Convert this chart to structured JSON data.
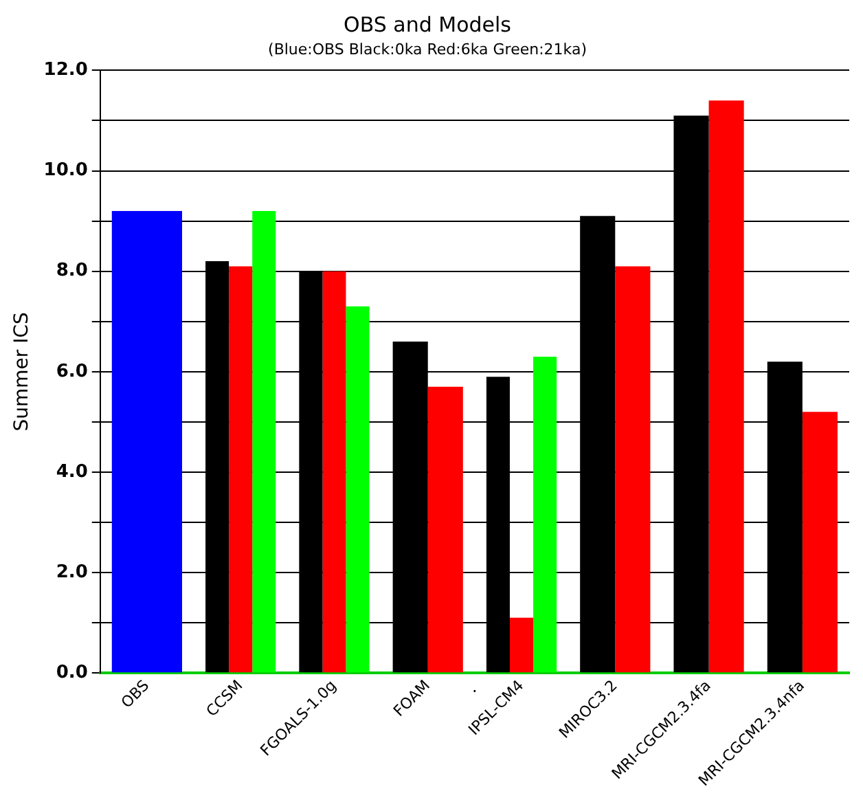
{
  "chart_data": {
    "type": "bar",
    "title": "OBS and Models",
    "subtitle": "(Blue:OBS Black:0ka Red:6ka Green:21ka)",
    "ylabel": "Summer ICS",
    "categories": [
      "OBS",
      "CCSM",
      "FGOALS-1.0g",
      "FOAM",
      "IPSL-CM4",
      "MIROC3.2",
      "MRI-CGCM2.3.4fa",
      "MRI-CGCM2.3.4nfa"
    ],
    "series": [
      {
        "color": "#0000ff",
        "values": [
          9.2,
          null,
          null,
          null,
          null,
          null,
          null,
          null
        ]
      },
      {
        "color": "#000000",
        "values": [
          null,
          8.2,
          8.0,
          6.6,
          5.9,
          9.1,
          11.1,
          6.2
        ]
      },
      {
        "color": "#ff0000",
        "values": [
          null,
          8.1,
          8.0,
          5.7,
          1.1,
          8.1,
          11.4,
          5.2
        ]
      },
      {
        "color": "#00ff00",
        "values": [
          null,
          9.2,
          7.3,
          null,
          6.3,
          null,
          null,
          null
        ]
      }
    ],
    "ylim": [
      0,
      12
    ],
    "yticks": [
      {
        "value": 0,
        "label": "0.0"
      },
      {
        "value": 1,
        "label": null
      },
      {
        "value": 2,
        "label": "2.0"
      },
      {
        "value": 3,
        "label": null
      },
      {
        "value": 4,
        "label": "4.0"
      },
      {
        "value": 5,
        "label": null
      },
      {
        "value": 6,
        "label": "6.0"
      },
      {
        "value": 7,
        "label": null
      },
      {
        "value": 8,
        "label": "8.0"
      },
      {
        "value": 9,
        "label": null
      },
      {
        "value": 10,
        "label": "10.0"
      },
      {
        "value": 11,
        "label": null
      },
      {
        "value": 12,
        "label": "12.0"
      }
    ],
    "grid": "y",
    "legend": false,
    "annotations": [
      "."
    ]
  }
}
